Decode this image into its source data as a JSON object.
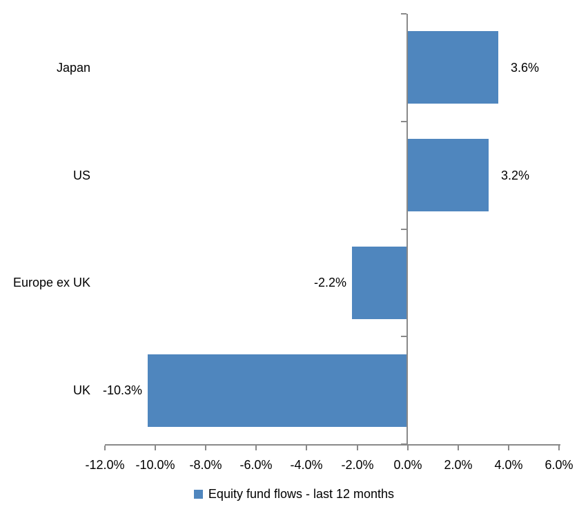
{
  "chart_data": {
    "type": "bar",
    "orientation": "horizontal",
    "title": "",
    "xlabel": "",
    "ylabel": "",
    "categories": [
      "Japan",
      "US",
      "Europe ex UK",
      "UK"
    ],
    "series": [
      {
        "name": "Equity fund flows - last 12 months",
        "values": [
          3.6,
          3.2,
          -2.2,
          -10.3
        ],
        "data_labels": [
          "3.6%",
          "3.2%",
          "-2.2%",
          "-10.3%"
        ]
      }
    ],
    "xlim": [
      -12,
      6
    ],
    "x_tick_step": 2,
    "x_ticks": [
      {
        "value": -12,
        "label": "-12.0%"
      },
      {
        "value": -10,
        "label": "-10.0%"
      },
      {
        "value": -8,
        "label": "-8.0%"
      },
      {
        "value": -6,
        "label": "-6.0%"
      },
      {
        "value": -4,
        "label": "-4.0%"
      },
      {
        "value": -2,
        "label": "-2.0%"
      },
      {
        "value": 0,
        "label": "0.0%"
      },
      {
        "value": 2,
        "label": "2.0%"
      },
      {
        "value": 4,
        "label": "4.0%"
      },
      {
        "value": 6,
        "label": "6.0%"
      }
    ],
    "grid": false,
    "legend": {
      "position": "bottom",
      "marker": "square",
      "label": "Equity fund flows - last 12 months"
    },
    "colors": {
      "bar": "#4F86BE",
      "axis": "#898989",
      "text": "#000000",
      "background": "#FFFFFF"
    }
  }
}
